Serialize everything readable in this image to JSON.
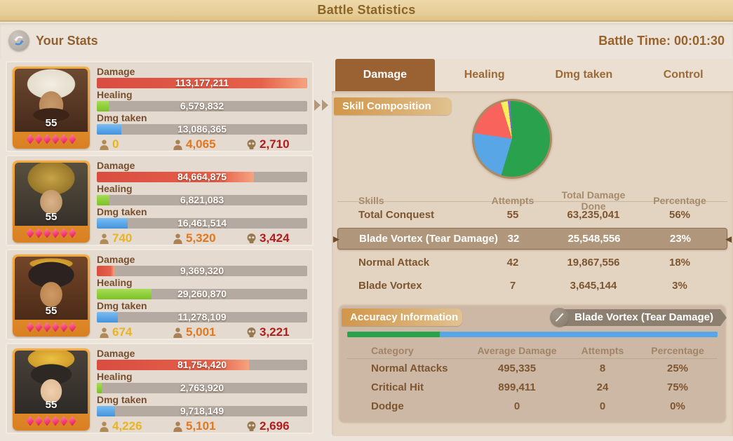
{
  "title": "Battle Statistics",
  "header": {
    "your_stats": "Your Stats",
    "battle_time": "Battle Time: 00:01:30"
  },
  "labels": {
    "damage": "Damage",
    "healing": "Healing",
    "dmg_taken": "Dmg taken"
  },
  "heroes": [
    {
      "level": "55",
      "stars": 6,
      "damage": "113,177,211",
      "healing": "6,579,832",
      "dmg_taken": "13,086,365",
      "slightly_wounded": "0",
      "severely_wounded": "4,065",
      "dead": "2,710"
    },
    {
      "level": "55",
      "stars": 6,
      "damage": "84,664,875",
      "healing": "6,821,083",
      "dmg_taken": "16,461,514",
      "slightly_wounded": "740",
      "severely_wounded": "5,320",
      "dead": "3,424"
    },
    {
      "level": "55",
      "stars": 6,
      "damage": "9,369,320",
      "healing": "29,260,870",
      "dmg_taken": "11,278,109",
      "slightly_wounded": "674",
      "severely_wounded": "5,001",
      "dead": "3,221"
    },
    {
      "level": "55",
      "stars": 6,
      "damage": "81,754,420",
      "healing": "2,763,920",
      "dmg_taken": "9,718,149",
      "slightly_wounded": "4,226",
      "severely_wounded": "5,101",
      "dead": "2,696"
    }
  ],
  "tabs": [
    {
      "label": "Damage",
      "active": true
    },
    {
      "label": "Healing",
      "active": false
    },
    {
      "label": "Dmg taken",
      "active": false
    },
    {
      "label": "Control",
      "active": false
    }
  ],
  "skill_composition": {
    "title": "Skill Composition",
    "columns": {
      "skills": "Skills",
      "attempts": "Attempts",
      "damage": "Total Damage Done",
      "pct": "Percentage"
    },
    "rows": [
      {
        "color": "#2aa24d",
        "name": "Total Conquest",
        "attempts": "55",
        "damage": "63,235,041",
        "pct": "56%",
        "selected": false
      },
      {
        "color": "#58a6e6",
        "name": "Blade Vortex (Tear Damage)",
        "attempts": "32",
        "damage": "25,548,556",
        "pct": "23%",
        "selected": true
      },
      {
        "color": "#f8635b",
        "name": "Normal Attack",
        "attempts": "42",
        "damage": "19,867,556",
        "pct": "18%",
        "selected": false
      },
      {
        "color": "#f9ef58",
        "name": "Blade Vortex",
        "attempts": "7",
        "damage": "3,645,144",
        "pct": "3%",
        "selected": false
      }
    ]
  },
  "accuracy": {
    "title": "Accuracy Information",
    "selected_skill": "Blade Vortex (Tear Damage)",
    "columns": {
      "category": "Category",
      "avg": "Average Damage",
      "attempts": "Attempts",
      "pct": "Percentage"
    },
    "rows": [
      {
        "color": "#2aa24d",
        "name": "Normal Attacks",
        "avg": "495,335",
        "attempts": "8",
        "pct": "25%",
        "pct_num": 25
      },
      {
        "color": "#58a6e6",
        "name": "Critical Hit",
        "avg": "899,411",
        "attempts": "24",
        "pct": "75%",
        "pct_num": 75
      },
      {
        "color": "#f8635b",
        "name": "Dodge",
        "avg": "0",
        "attempts": "0",
        "pct": "0%",
        "pct_num": 0
      }
    ]
  },
  "chart_data": [
    {
      "type": "pie",
      "title": "Skill Composition",
      "legend_position": "table-below",
      "slices": [
        {
          "label": "Total Conquest",
          "attempts": 55,
          "total_damage": 63235041,
          "percent": 56,
          "color": "#2aa24d"
        },
        {
          "label": "Blade Vortex (Tear Damage)",
          "attempts": 32,
          "total_damage": 25548556,
          "percent": 23,
          "color": "#58a6e6"
        },
        {
          "label": "Normal Attack",
          "attempts": 42,
          "total_damage": 19867556,
          "percent": 18,
          "color": "#f8635b"
        },
        {
          "label": "Blade Vortex",
          "attempts": 7,
          "total_damage": 3645144,
          "percent": 3,
          "color": "#f9ef58"
        }
      ],
      "unlabeled_sliver": {
        "percent": 1,
        "color": "#8f63e8"
      }
    },
    {
      "type": "bar",
      "title": "Accuracy Information (stacked ratio bar)",
      "categories": [
        "Normal Attacks",
        "Critical Hit",
        "Dodge"
      ],
      "values": [
        25,
        75,
        0
      ],
      "colors": [
        "#2aa24d",
        "#58a6e6",
        "#f8635b"
      ],
      "xlabel": "",
      "ylabel": "Percentage",
      "ylim": [
        0,
        100
      ]
    }
  ]
}
